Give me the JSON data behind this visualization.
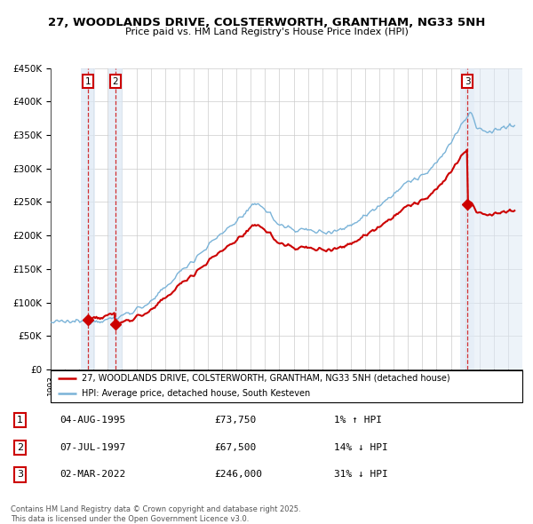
{
  "title": "27, WOODLANDS DRIVE, COLSTERWORTH, GRANTHAM, NG33 5NH",
  "subtitle": "Price paid vs. HM Land Registry's House Price Index (HPI)",
  "hpi_color": "#7ab3d8",
  "price_color": "#cc0000",
  "shade_color": "#dce8f5",
  "hatch_color": "#b8c8d8",
  "background_color": "#ffffff",
  "grid_color": "#cccccc",
  "ylim": [
    0,
    450000
  ],
  "yticks": [
    0,
    50000,
    100000,
    150000,
    200000,
    250000,
    300000,
    350000,
    400000,
    450000
  ],
  "ytick_labels": [
    "£0",
    "£50K",
    "£100K",
    "£150K",
    "£200K",
    "£250K",
    "£300K",
    "£350K",
    "£400K",
    "£450K"
  ],
  "legend_entries": [
    "27, WOODLANDS DRIVE, COLSTERWORTH, GRANTHAM, NG33 5NH (detached house)",
    "HPI: Average price, detached house, South Kesteven"
  ],
  "trans_dates": [
    "1995-08-04",
    "1997-07-07",
    "2022-03-02"
  ],
  "trans_prices": [
    73750,
    67500,
    246000
  ],
  "trans_labels": [
    "1",
    "2",
    "3"
  ],
  "table_entries": [
    {
      "num": "1",
      "date": "04-AUG-1995",
      "price": "£73,750",
      "change": "1% ↑ HPI"
    },
    {
      "num": "2",
      "date": "07-JUL-1997",
      "price": "£67,500",
      "change": "14% ↓ HPI"
    },
    {
      "num": "3",
      "date": "02-MAR-2022",
      "price": "£246,000",
      "change": "31% ↓ HPI"
    }
  ],
  "footnote": "Contains HM Land Registry data © Crown copyright and database right 2025.\nThis data is licensed under the Open Government Licence v3.0.",
  "x_start_year": 1993,
  "x_end_year": 2025
}
